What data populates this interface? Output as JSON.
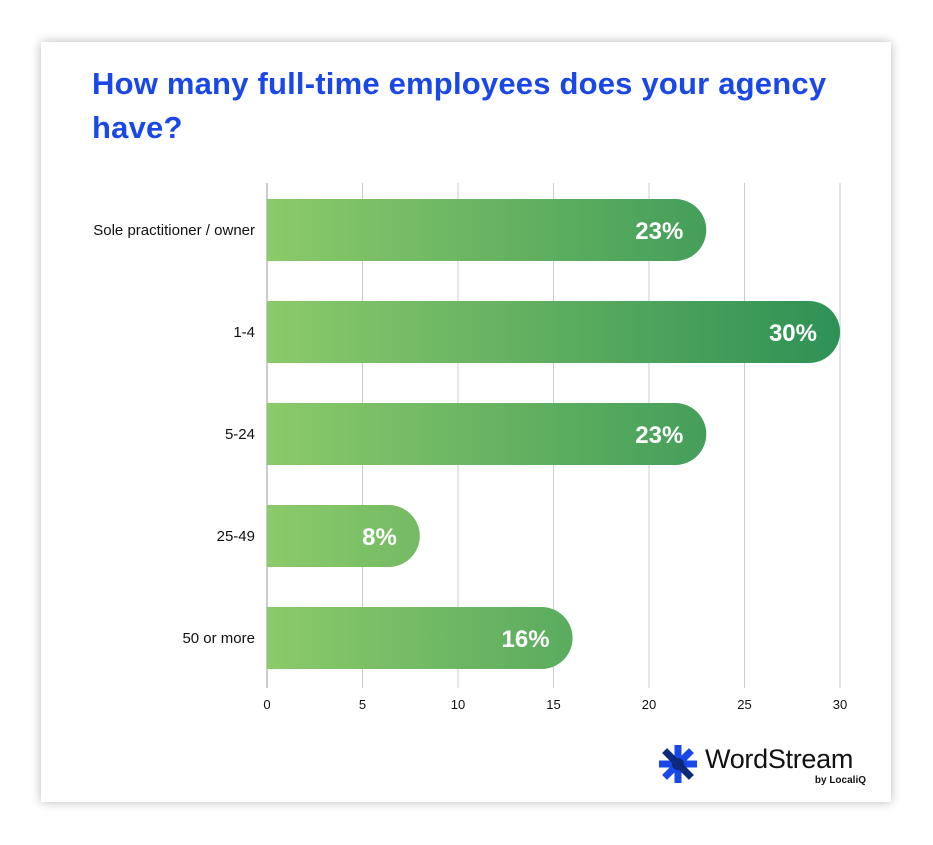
{
  "title": "How many full-time employees does your agency have?",
  "logo": {
    "name": "WordStream",
    "sub": "by LocaliQ"
  },
  "colors": {
    "title": "#1a47e8",
    "bar_start": "#8cca6a",
    "bar_end": "#2e9155",
    "grid": "#cccccc",
    "logo_blue": "#1a47e8",
    "logo_navy": "#0b2a7a"
  },
  "chart_data": {
    "type": "bar",
    "orientation": "horizontal",
    "categories": [
      "Sole practitioner / owner",
      "1-4",
      "5-24",
      "25-49",
      "50 or more"
    ],
    "values": [
      23,
      30,
      23,
      8,
      16
    ],
    "data_labels": [
      "23%",
      "30%",
      "23%",
      "8%",
      "16%"
    ],
    "xlim": [
      0,
      30
    ],
    "xticks": [
      0,
      5,
      10,
      15,
      20,
      25,
      30
    ],
    "grid": true,
    "xlabel": "",
    "ylabel": ""
  }
}
